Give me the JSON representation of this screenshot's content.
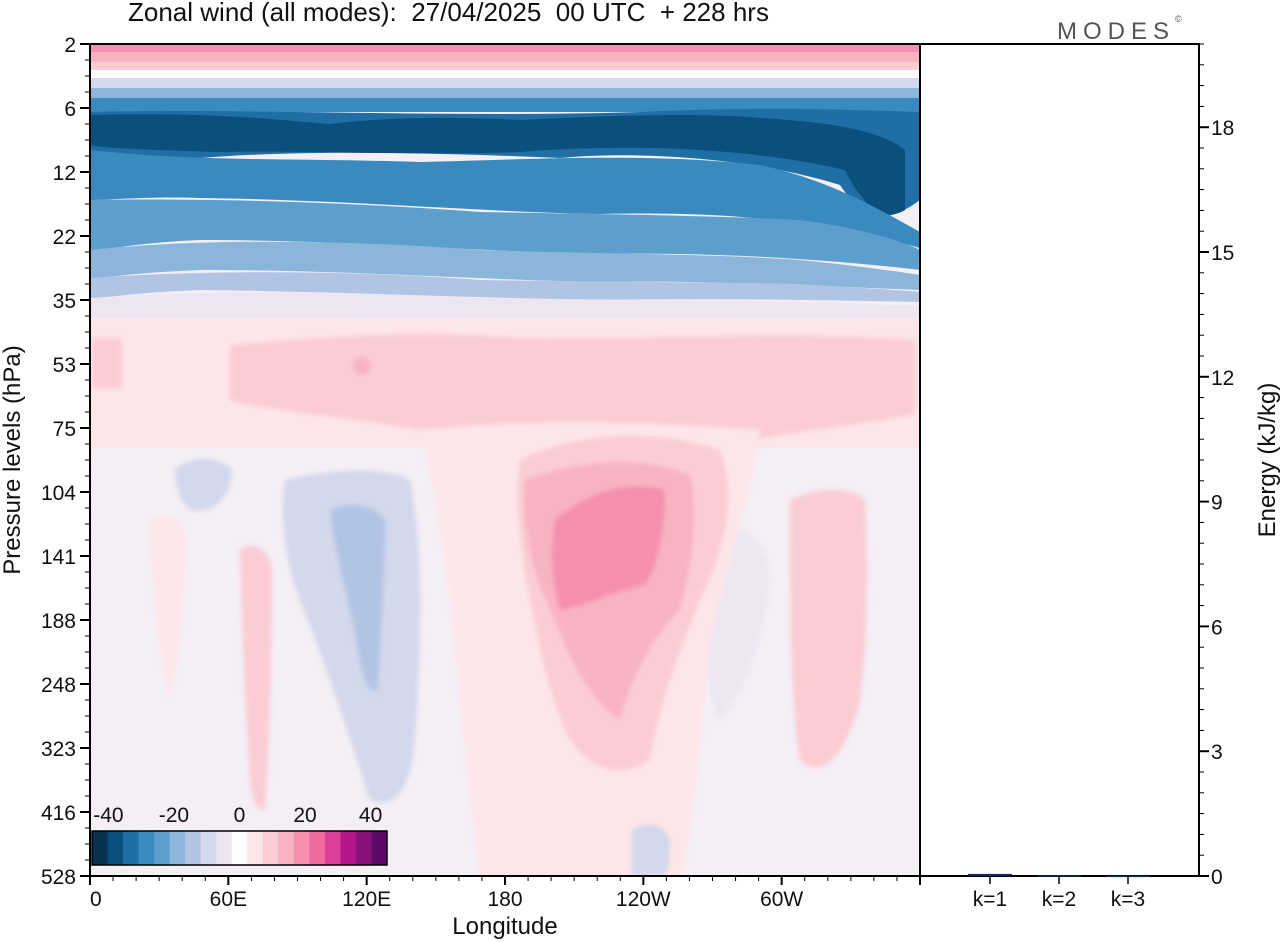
{
  "title": "Zonal wind (all modes):  27/04/2025  00 UTC  + 228 hrs",
  "logo": "MODES",
  "chart_data": [
    {
      "type": "heatmap",
      "xlabel": "Longitude",
      "ylabel": "Pressure levels (hPa)",
      "x_ticks": [
        "0",
        "60E",
        "120E",
        "180",
        "120W",
        "60W"
      ],
      "x_tick_values": [
        0,
        60,
        120,
        180,
        240,
        300
      ],
      "xlim": [
        0,
        360
      ],
      "y_ticks": [
        "2",
        "6",
        "12",
        "22",
        "35",
        "53",
        "75",
        "104",
        "141",
        "188",
        "248",
        "323",
        "416",
        "528"
      ],
      "y_scale": "model levels (pressure, hPa)",
      "colorbar": {
        "tick_labels": [
          "-40",
          "-20",
          "0",
          "20",
          "40"
        ],
        "tick_values": [
          -40,
          -20,
          0,
          20,
          40
        ],
        "levels": [
          -45,
          -40,
          -35,
          -30,
          -25,
          -20,
          -15,
          -10,
          -5,
          0,
          5,
          10,
          15,
          20,
          25,
          30,
          35,
          40,
          45
        ],
        "colors": [
          "#08324f",
          "#0b4f7d",
          "#1f6ea6",
          "#3a8abf",
          "#5c9fcc",
          "#8bb5d9",
          "#b2c4e3",
          "#d3d8ec",
          "#ebe6f2",
          "#ffffff",
          "#fde6e9",
          "#fbcdd3",
          "#f8b3c1",
          "#f590ae",
          "#ee6ba2",
          "#dc3e9a",
          "#b5168c",
          "#891076",
          "#5c0a67"
        ],
        "placement": "bottom-left inside plot"
      },
      "zonal_wind_bands": [
        {
          "levels": "2",
          "approx_value": 15
        },
        {
          "levels": "3-5",
          "approx_value": 0
        },
        {
          "levels": "6-12",
          "approx_value": -35
        },
        {
          "levels": "12-22",
          "approx_value": -25
        },
        {
          "levels": "22-35",
          "approx_value": -10
        },
        {
          "levels": "35-75",
          "approx_value": 5
        },
        {
          "levels": "104-248",
          "lon_range": "190-250",
          "approx_value": 15
        },
        {
          "levels": "104-248",
          "lon_range": "80-125",
          "approx_value": -5
        }
      ]
    },
    {
      "type": "bar",
      "ylabel": "Energy (kJ/kg)",
      "categories": [
        "k=1",
        "k=2",
        "k=3"
      ],
      "values": [
        0.05,
        0.02,
        0.01
      ],
      "ylim": [
        0,
        20
      ],
      "y_ticks": [
        "0",
        "3",
        "6",
        "9",
        "12",
        "15",
        "18"
      ],
      "y_tick_values": [
        0,
        3,
        6,
        9,
        12,
        15,
        18
      ]
    }
  ]
}
